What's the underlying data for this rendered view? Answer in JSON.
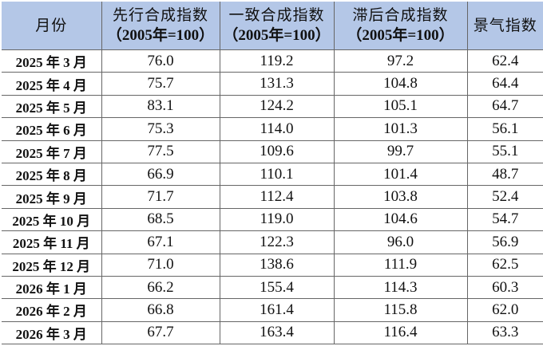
{
  "header": {
    "month": "月份",
    "leading": {
      "title": "先行合成指数",
      "base": "（2005年=100）"
    },
    "coincident": {
      "title": "一致合成指数",
      "base": "（2005年=100）"
    },
    "lagging": {
      "title": "滞后合成指数",
      "base": "（2005年=100）"
    },
    "climate": "景气指数"
  },
  "header_color": "#b4c7e7",
  "rows": [
    [
      "2025 年 3 月",
      "76.0",
      "119.2",
      "97.2",
      "62.4"
    ],
    [
      "2025 年 4 月",
      "75.7",
      "131.3",
      "104.8",
      "64.4"
    ],
    [
      "2025 年 5 月",
      "83.1",
      "124.2",
      "105.1",
      "64.7"
    ],
    [
      "2025 年 6 月",
      "75.3",
      "114.0",
      "101.3",
      "56.1"
    ],
    [
      "2025 年 7 月",
      "77.5",
      "109.6",
      "99.7",
      "55.1"
    ],
    [
      "2025 年 8 月",
      "66.9",
      "110.1",
      "101.4",
      "48.7"
    ],
    [
      "2025 年 9 月",
      "71.7",
      "112.4",
      "103.8",
      "52.4"
    ],
    [
      "2025 年 10 月",
      "68.5",
      "119.0",
      "104.6",
      "54.7"
    ],
    [
      "2025 年 11 月",
      "67.1",
      "122.3",
      "96.0",
      "56.9"
    ],
    [
      "2025 年 12 月",
      "71.0",
      "138.6",
      "111.9",
      "62.5"
    ],
    [
      "2026 年 1 月",
      "66.2",
      "155.4",
      "114.3",
      "60.3"
    ],
    [
      "2026 年 2 月",
      "66.8",
      "161.4",
      "115.8",
      "62.0"
    ],
    [
      "2026 年 3 月",
      "67.7",
      "163.4",
      "116.4",
      "63.3"
    ]
  ]
}
